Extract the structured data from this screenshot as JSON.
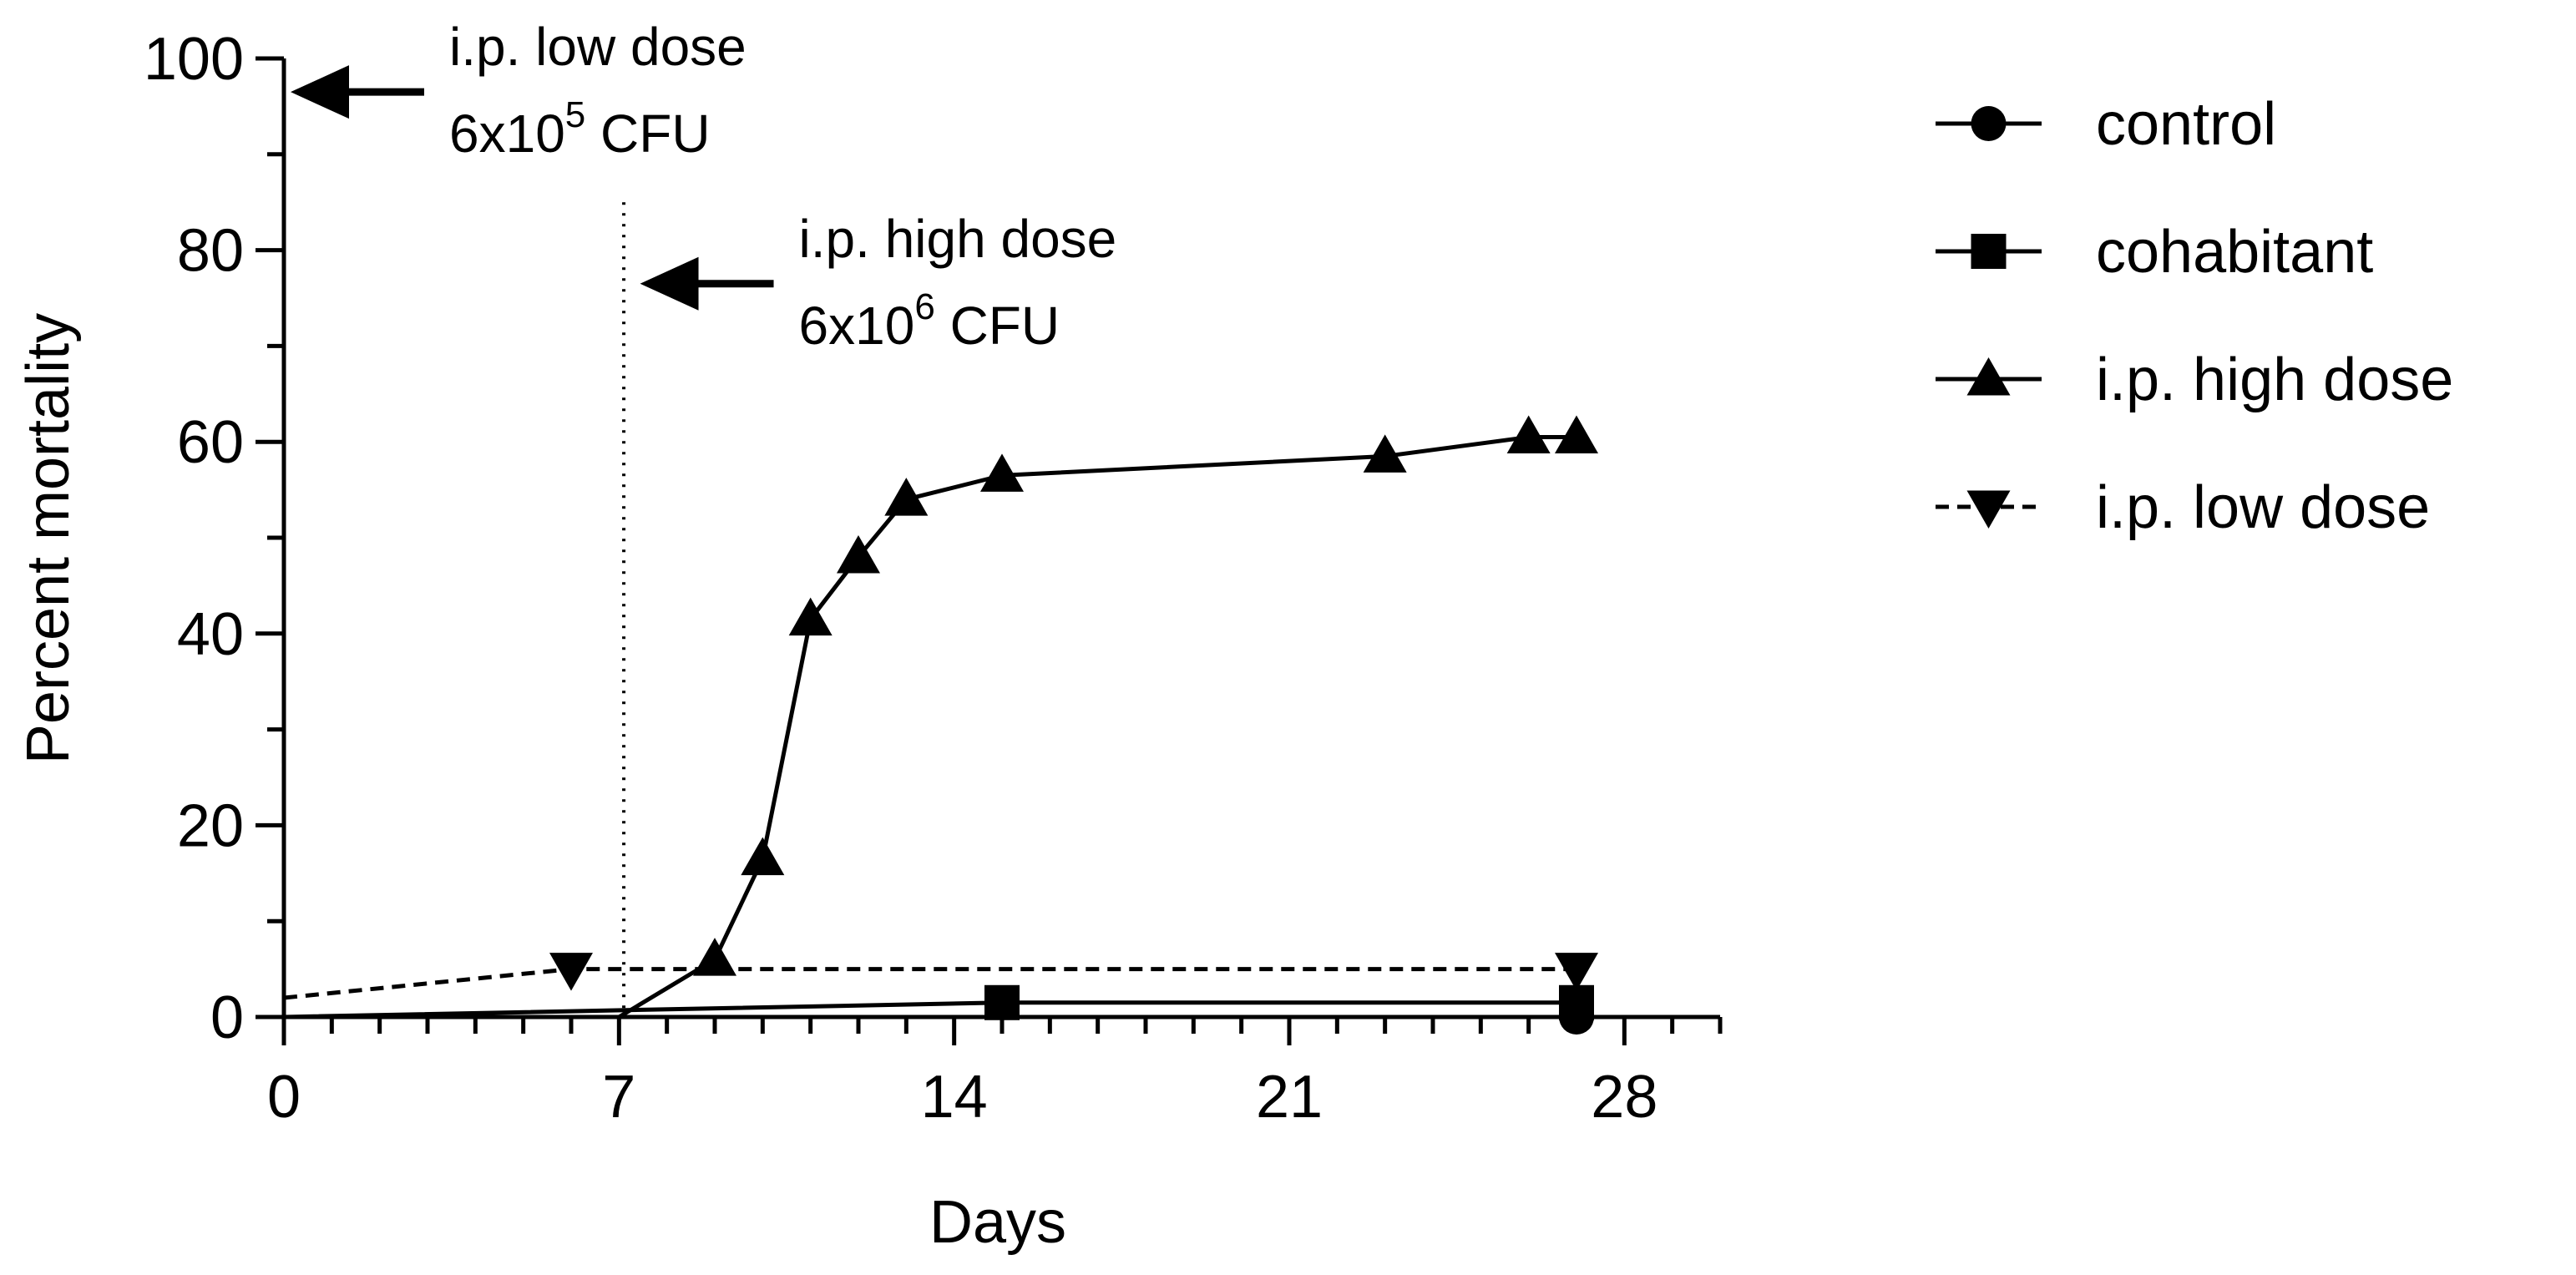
{
  "chart_data": {
    "type": "line",
    "xlabel": "Days",
    "ylabel": "Percent mortality",
    "xlim": [
      0,
      30
    ],
    "ylim": [
      0,
      100
    ],
    "x_ticks": [
      0,
      7,
      14,
      21,
      28
    ],
    "y_ticks": [
      0,
      20,
      40,
      60,
      80,
      100
    ],
    "grid": false,
    "legend_position": "right",
    "series": [
      {
        "name": "control",
        "marker": "circle",
        "line_style": "solid",
        "x": [
          0,
          27
        ],
        "y": [
          0,
          0
        ]
      },
      {
        "name": "cohabitant",
        "marker": "square",
        "line_style": "solid",
        "x": [
          0,
          15,
          27
        ],
        "y": [
          0,
          1.5,
          1.5
        ]
      },
      {
        "name": "i.p. high dose",
        "marker": "triangle-up",
        "line_style": "solid",
        "x": [
          7,
          9,
          10,
          11,
          12,
          13,
          15,
          23,
          26,
          27
        ],
        "y": [
          0,
          6,
          16.5,
          41.5,
          48,
          54,
          56.5,
          58.5,
          60.5,
          60.5
        ]
      },
      {
        "name": "i.p. low dose",
        "marker": "triangle-down",
        "line_style": "dashed",
        "x": [
          0,
          6,
          27
        ],
        "y": [
          2,
          5,
          5
        ]
      }
    ],
    "reference_lines": [
      {
        "axis": "x",
        "value": 7.1,
        "style": "dotted",
        "y_to": 85
      }
    ],
    "annotations": [
      {
        "line1": "i.p. low dose",
        "base": "6x10",
        "exp": "5",
        "unit": "CFU",
        "arrow_to_x": 0,
        "arrow_to_y": 96.5
      },
      {
        "line1": "i.p. high dose",
        "base": "6x10",
        "exp": "6",
        "unit": "CFU",
        "arrow_to_x": 7.3,
        "arrow_to_y": 76.5
      }
    ]
  }
}
